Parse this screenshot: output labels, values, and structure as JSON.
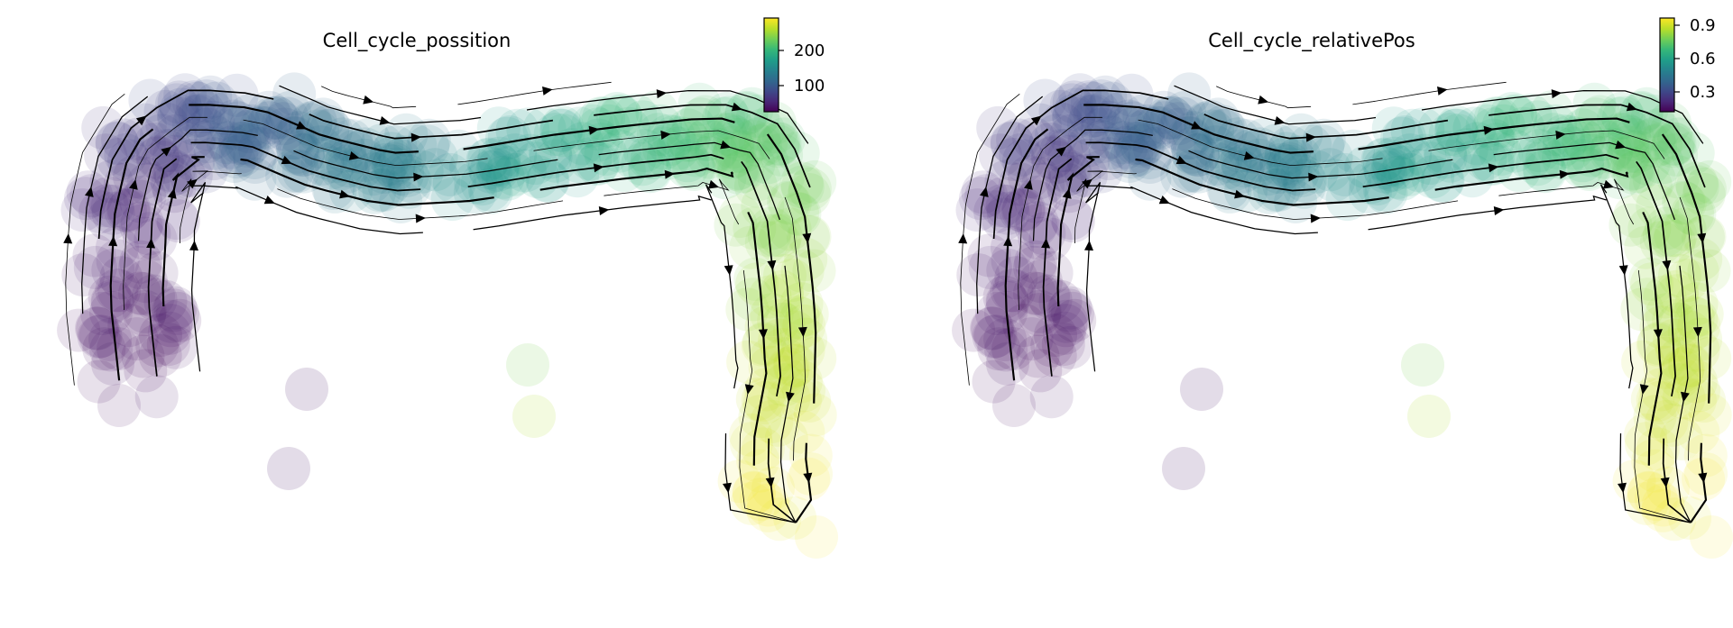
{
  "chart_data": [
    {
      "type": "scatter",
      "subtype": "velocity-streamplot",
      "title": "Cell_cycle_possition",
      "xlabel": "",
      "ylabel": "",
      "axes_visible": false,
      "grid": false,
      "colormap": "viridis",
      "colorbar": {
        "ticks": [
          100,
          200
        ],
        "tick_labels": [
          "100",
          "200"
        ],
        "range": [
          30,
          295
        ],
        "placement": "top-right"
      }
    },
    {
      "type": "scatter",
      "subtype": "velocity-streamplot",
      "title": "Cell_cycle_relativePos",
      "xlabel": "",
      "ylabel": "",
      "axes_visible": false,
      "grid": false,
      "colormap": "viridis",
      "colorbar": {
        "ticks": [
          0.3,
          0.6,
          0.9
        ],
        "tick_labels": [
          "0.3",
          "0.6",
          "0.9"
        ],
        "range": [
          0.1,
          0.95
        ],
        "placement": "top-right"
      }
    }
  ],
  "colors": {
    "viridis": [
      "#440154",
      "#482878",
      "#3e4989",
      "#31688e",
      "#26828e",
      "#1f9e89",
      "#35b779",
      "#6ece58",
      "#b5de2b",
      "#fde725"
    ],
    "stream": "#000000"
  }
}
